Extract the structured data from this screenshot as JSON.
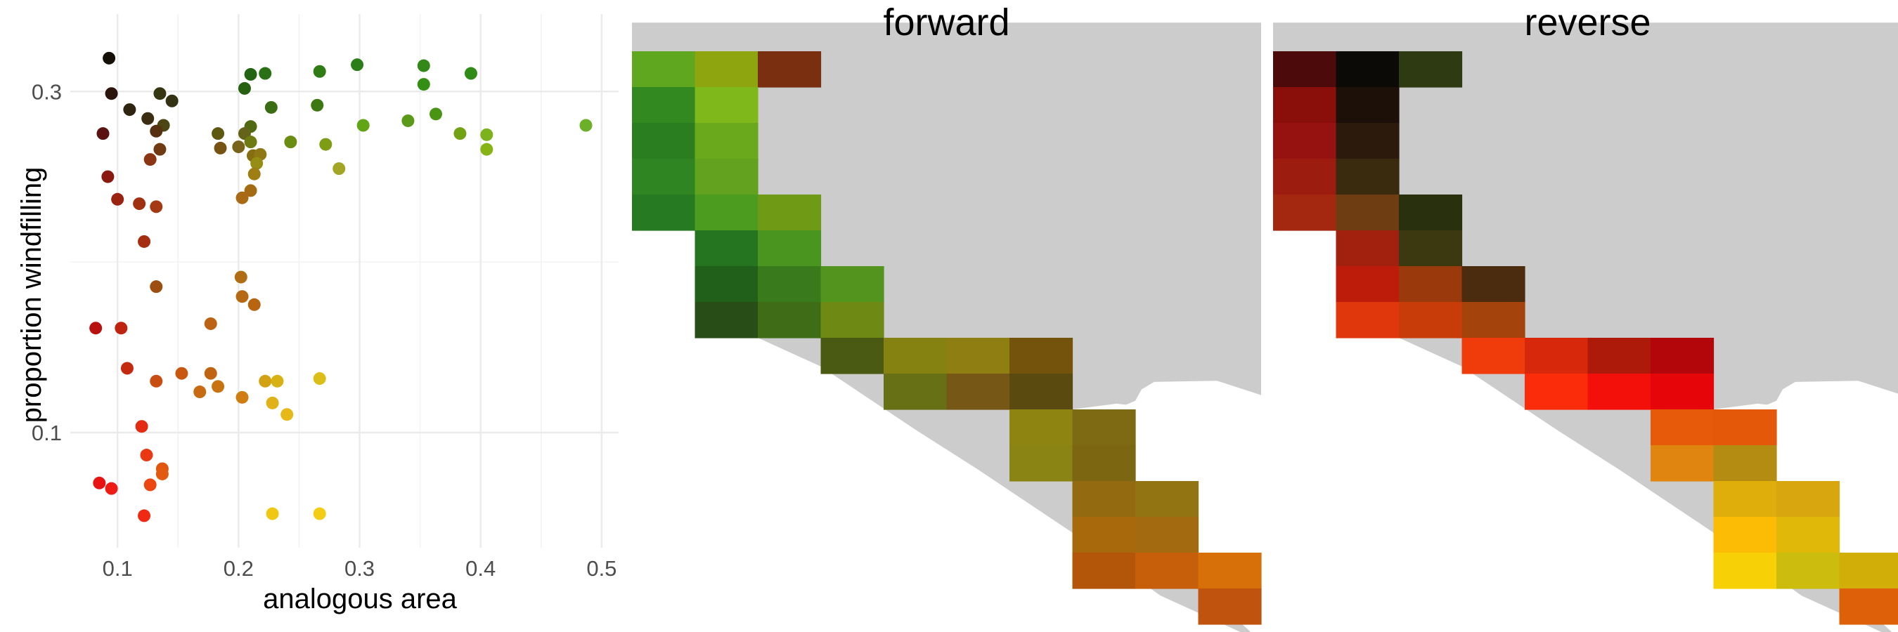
{
  "chart_data": [
    {
      "type": "scatter",
      "title": "",
      "xlabel": "analogous area",
      "ylabel": "proportion windfilling",
      "x_ticks": [
        0.1,
        0.2,
        0.3,
        0.4,
        0.5
      ],
      "x_tick_labels": [
        "0.1",
        "0.2",
        "0.3",
        "0.4",
        "0.5"
      ],
      "y_ticks": [
        0.1,
        0.3
      ],
      "y_tick_labels": [
        "0.1",
        "0.3"
      ],
      "xlim": [
        0.061,
        0.514
      ],
      "ylim": [
        0.069,
        0.385
      ],
      "y_scale": "log",
      "grid": true,
      "legend": "none",
      "points": [
        {
          "x": 0.093,
          "y": 0.334,
          "color": "#141008"
        },
        {
          "x": 0.095,
          "y": 0.298,
          "color": "#2a140b"
        },
        {
          "x": 0.11,
          "y": 0.283,
          "color": "#2e2410"
        },
        {
          "x": 0.135,
          "y": 0.298,
          "color": "#363612"
        },
        {
          "x": 0.145,
          "y": 0.291,
          "color": "#333212"
        },
        {
          "x": 0.125,
          "y": 0.275,
          "color": "#3a2d12"
        },
        {
          "x": 0.138,
          "y": 0.269,
          "color": "#4b4613"
        },
        {
          "x": 0.088,
          "y": 0.262,
          "color": "#5a1312"
        },
        {
          "x": 0.132,
          "y": 0.264,
          "color": "#563011"
        },
        {
          "x": 0.135,
          "y": 0.249,
          "color": "#703a13"
        },
        {
          "x": 0.127,
          "y": 0.241,
          "color": "#8a3514"
        },
        {
          "x": 0.092,
          "y": 0.228,
          "color": "#8a1a10"
        },
        {
          "x": 0.1,
          "y": 0.212,
          "color": "#9a2211"
        },
        {
          "x": 0.118,
          "y": 0.209,
          "color": "#a0300f"
        },
        {
          "x": 0.132,
          "y": 0.207,
          "color": "#a53a12"
        },
        {
          "x": 0.122,
          "y": 0.185,
          "color": "#a52d11"
        },
        {
          "x": 0.132,
          "y": 0.16,
          "color": "#9c4d10"
        },
        {
          "x": 0.082,
          "y": 0.14,
          "color": "#b8110f"
        },
        {
          "x": 0.103,
          "y": 0.14,
          "color": "#bf2310"
        },
        {
          "x": 0.108,
          "y": 0.123,
          "color": "#c42a10"
        },
        {
          "x": 0.132,
          "y": 0.118,
          "color": "#c94c10"
        },
        {
          "x": 0.153,
          "y": 0.121,
          "color": "#c85810"
        },
        {
          "x": 0.12,
          "y": 0.102,
          "color": "#e42a12"
        },
        {
          "x": 0.124,
          "y": 0.093,
          "color": "#ea3812"
        },
        {
          "x": 0.137,
          "y": 0.089,
          "color": "#e2550f"
        },
        {
          "x": 0.137,
          "y": 0.0875,
          "color": "#e25a0f"
        },
        {
          "x": 0.127,
          "y": 0.0845,
          "color": "#ec4612"
        },
        {
          "x": 0.085,
          "y": 0.085,
          "color": "#e81414"
        },
        {
          "x": 0.095,
          "y": 0.0835,
          "color": "#ee1c14"
        },
        {
          "x": 0.122,
          "y": 0.0765,
          "color": "#f02a12"
        },
        {
          "x": 0.21,
          "y": 0.317,
          "color": "#236414"
        },
        {
          "x": 0.222,
          "y": 0.318,
          "color": "#2a7014"
        },
        {
          "x": 0.205,
          "y": 0.303,
          "color": "#286012"
        },
        {
          "x": 0.267,
          "y": 0.32,
          "color": "#2f7c14"
        },
        {
          "x": 0.298,
          "y": 0.327,
          "color": "#2b7e18"
        },
        {
          "x": 0.353,
          "y": 0.326,
          "color": "#328818"
        },
        {
          "x": 0.392,
          "y": 0.318,
          "color": "#308b17"
        },
        {
          "x": 0.353,
          "y": 0.307,
          "color": "#339014"
        },
        {
          "x": 0.227,
          "y": 0.285,
          "color": "#3a6d14"
        },
        {
          "x": 0.265,
          "y": 0.287,
          "color": "#3c7712"
        },
        {
          "x": 0.363,
          "y": 0.279,
          "color": "#4a9414"
        },
        {
          "x": 0.34,
          "y": 0.273,
          "color": "#5b9a18"
        },
        {
          "x": 0.303,
          "y": 0.269,
          "color": "#61a414"
        },
        {
          "x": 0.21,
          "y": 0.268,
          "color": "#4f6a12"
        },
        {
          "x": 0.183,
          "y": 0.262,
          "color": "#5e5810"
        },
        {
          "x": 0.205,
          "y": 0.262,
          "color": "#65631a"
        },
        {
          "x": 0.487,
          "y": 0.269,
          "color": "#6cb02a"
        },
        {
          "x": 0.383,
          "y": 0.262,
          "color": "#72a214"
        },
        {
          "x": 0.405,
          "y": 0.261,
          "color": "#7bb21e"
        },
        {
          "x": 0.243,
          "y": 0.255,
          "color": "#6a8c10"
        },
        {
          "x": 0.21,
          "y": 0.255,
          "color": "#6e7a12"
        },
        {
          "x": 0.272,
          "y": 0.253,
          "color": "#7e9c14"
        },
        {
          "x": 0.405,
          "y": 0.249,
          "color": "#86b414"
        },
        {
          "x": 0.185,
          "y": 0.25,
          "color": "#765312"
        },
        {
          "x": 0.2,
          "y": 0.251,
          "color": "#77631a"
        },
        {
          "x": 0.212,
          "y": 0.244,
          "color": "#846e10"
        },
        {
          "x": 0.218,
          "y": 0.245,
          "color": "#8e7814"
        },
        {
          "x": 0.215,
          "y": 0.238,
          "color": "#968d14"
        },
        {
          "x": 0.283,
          "y": 0.234,
          "color": "#a2a624"
        },
        {
          "x": 0.213,
          "y": 0.23,
          "color": "#9e7e12"
        },
        {
          "x": 0.21,
          "y": 0.218,
          "color": "#a36c13"
        },
        {
          "x": 0.203,
          "y": 0.213,
          "color": "#aa6a14"
        },
        {
          "x": 0.202,
          "y": 0.165,
          "color": "#b06d14"
        },
        {
          "x": 0.203,
          "y": 0.155,
          "color": "#b56912"
        },
        {
          "x": 0.213,
          "y": 0.151,
          "color": "#b86410"
        },
        {
          "x": 0.177,
          "y": 0.142,
          "color": "#bc6214"
        },
        {
          "x": 0.177,
          "y": 0.121,
          "color": "#c06412"
        },
        {
          "x": 0.183,
          "y": 0.116,
          "color": "#c87212"
        },
        {
          "x": 0.168,
          "y": 0.114,
          "color": "#c86a12"
        },
        {
          "x": 0.203,
          "y": 0.112,
          "color": "#d07e14"
        },
        {
          "x": 0.222,
          "y": 0.118,
          "color": "#d2a214"
        },
        {
          "x": 0.232,
          "y": 0.118,
          "color": "#d8b214"
        },
        {
          "x": 0.267,
          "y": 0.119,
          "color": "#dcbe18"
        },
        {
          "x": 0.228,
          "y": 0.11,
          "color": "#e0b218"
        },
        {
          "x": 0.24,
          "y": 0.106,
          "color": "#e6b818"
        },
        {
          "x": 0.228,
          "y": 0.077,
          "color": "#f0c814"
        },
        {
          "x": 0.267,
          "y": 0.077,
          "color": "#f4cc14"
        }
      ]
    },
    {
      "type": "heatmap",
      "title": "forward",
      "cols": 10,
      "rows": 16,
      "background": "#cccccc",
      "cells": [
        {
          "c": 0,
          "r": 0,
          "color": "#5ea71f"
        },
        {
          "c": 1,
          "r": 0,
          "color": "#8ea510"
        },
        {
          "c": 2,
          "r": 0,
          "color": "#7a3010"
        },
        {
          "c": 0,
          "r": 1,
          "color": "#32891f"
        },
        {
          "c": 1,
          "r": 1,
          "color": "#7fb81a"
        },
        {
          "c": 0,
          "r": 2,
          "color": "#2a7e20"
        },
        {
          "c": 1,
          "r": 2,
          "color": "#6aa91c"
        },
        {
          "c": 0,
          "r": 3,
          "color": "#2f8522"
        },
        {
          "c": 1,
          "r": 3,
          "color": "#62a21e"
        },
        {
          "c": 0,
          "r": 4,
          "color": "#267a22"
        },
        {
          "c": 1,
          "r": 4,
          "color": "#4c9c20"
        },
        {
          "c": 2,
          "r": 4,
          "color": "#6e9a16"
        },
        {
          "c": 1,
          "r": 5,
          "color": "#25741f"
        },
        {
          "c": 2,
          "r": 5,
          "color": "#4a951f"
        },
        {
          "c": 1,
          "r": 6,
          "color": "#21601a"
        },
        {
          "c": 2,
          "r": 6,
          "color": "#397a1c"
        },
        {
          "c": 3,
          "r": 6,
          "color": "#52941e"
        },
        {
          "c": 1,
          "r": 7,
          "color": "#284d16"
        },
        {
          "c": 2,
          "r": 7,
          "color": "#3f6c16"
        },
        {
          "c": 3,
          "r": 7,
          "color": "#6e8a14"
        },
        {
          "c": 3,
          "r": 8,
          "color": "#4b5a12"
        },
        {
          "c": 4,
          "r": 8,
          "color": "#868212"
        },
        {
          "c": 5,
          "r": 8,
          "color": "#8f7e12"
        },
        {
          "c": 6,
          "r": 8,
          "color": "#74530d"
        },
        {
          "c": 4,
          "r": 9,
          "color": "#677015"
        },
        {
          "c": 5,
          "r": 9,
          "color": "#765716"
        },
        {
          "c": 6,
          "r": 9,
          "color": "#5a4a10"
        },
        {
          "c": 6,
          "r": 10,
          "color": "#8e8412"
        },
        {
          "c": 7,
          "r": 10,
          "color": "#7e6a12"
        },
        {
          "c": 6,
          "r": 11,
          "color": "#8a8415"
        },
        {
          "c": 7,
          "r": 11,
          "color": "#7d6612"
        },
        {
          "c": 7,
          "r": 12,
          "color": "#946a10"
        },
        {
          "c": 8,
          "r": 12,
          "color": "#927412"
        },
        {
          "c": 7,
          "r": 13,
          "color": "#a8680c"
        },
        {
          "c": 8,
          "r": 13,
          "color": "#a46a10"
        },
        {
          "c": 7,
          "r": 14,
          "color": "#b4560a"
        },
        {
          "c": 8,
          "r": 14,
          "color": "#c65e0a"
        },
        {
          "c": 9,
          "r": 14,
          "color": "#d8700a"
        },
        {
          "c": 9,
          "r": 15,
          "color": "#c0540e"
        }
      ]
    },
    {
      "type": "heatmap",
      "title": "reverse",
      "cols": 10,
      "rows": 16,
      "background": "#cccccc",
      "cells": [
        {
          "c": 0,
          "r": 0,
          "color": "#4c0a0a"
        },
        {
          "c": 1,
          "r": 0,
          "color": "#0c0a06"
        },
        {
          "c": 2,
          "r": 0,
          "color": "#2e3a12"
        },
        {
          "c": 0,
          "r": 1,
          "color": "#8a0e0a"
        },
        {
          "c": 1,
          "r": 1,
          "color": "#1c1008"
        },
        {
          "c": 0,
          "r": 2,
          "color": "#961210"
        },
        {
          "c": 1,
          "r": 2,
          "color": "#2c1a0c"
        },
        {
          "c": 0,
          "r": 3,
          "color": "#9c1c10"
        },
        {
          "c": 1,
          "r": 3,
          "color": "#3a2a0e"
        },
        {
          "c": 0,
          "r": 4,
          "color": "#a42810"
        },
        {
          "c": 1,
          "r": 4,
          "color": "#6e3e12"
        },
        {
          "c": 2,
          "r": 4,
          "color": "#28300e"
        },
        {
          "c": 1,
          "r": 5,
          "color": "#a2200e"
        },
        {
          "c": 2,
          "r": 5,
          "color": "#3c3810"
        },
        {
          "c": 1,
          "r": 6,
          "color": "#be1c0a"
        },
        {
          "c": 2,
          "r": 6,
          "color": "#9a3a0c"
        },
        {
          "c": 3,
          "r": 6,
          "color": "#4c2c0e"
        },
        {
          "c": 1,
          "r": 7,
          "color": "#e0380c"
        },
        {
          "c": 2,
          "r": 7,
          "color": "#c83c0a"
        },
        {
          "c": 3,
          "r": 7,
          "color": "#a4440c"
        },
        {
          "c": 3,
          "r": 8,
          "color": "#f03c0a"
        },
        {
          "c": 4,
          "r": 8,
          "color": "#d8280c"
        },
        {
          "c": 5,
          "r": 8,
          "color": "#ae1a0a"
        },
        {
          "c": 6,
          "r": 8,
          "color": "#b2060a"
        },
        {
          "c": 4,
          "r": 9,
          "color": "#fa2c0a"
        },
        {
          "c": 5,
          "r": 9,
          "color": "#f4100a"
        },
        {
          "c": 6,
          "r": 9,
          "color": "#e6060a"
        },
        {
          "c": 6,
          "r": 10,
          "color": "#e65a0a"
        },
        {
          "c": 7,
          "r": 10,
          "color": "#e4580a"
        },
        {
          "c": 6,
          "r": 11,
          "color": "#e08610"
        },
        {
          "c": 7,
          "r": 11,
          "color": "#b48c12"
        },
        {
          "c": 7,
          "r": 12,
          "color": "#e0ae0a"
        },
        {
          "c": 8,
          "r": 12,
          "color": "#d8a60e"
        },
        {
          "c": 7,
          "r": 13,
          "color": "#fcbc06"
        },
        {
          "c": 8,
          "r": 13,
          "color": "#e0b80a"
        },
        {
          "c": 7,
          "r": 14,
          "color": "#f8d006"
        },
        {
          "c": 8,
          "r": 14,
          "color": "#cbbc0e"
        },
        {
          "c": 9,
          "r": 14,
          "color": "#d2ae08"
        },
        {
          "c": 9,
          "r": 15,
          "color": "#de6008"
        }
      ]
    }
  ]
}
